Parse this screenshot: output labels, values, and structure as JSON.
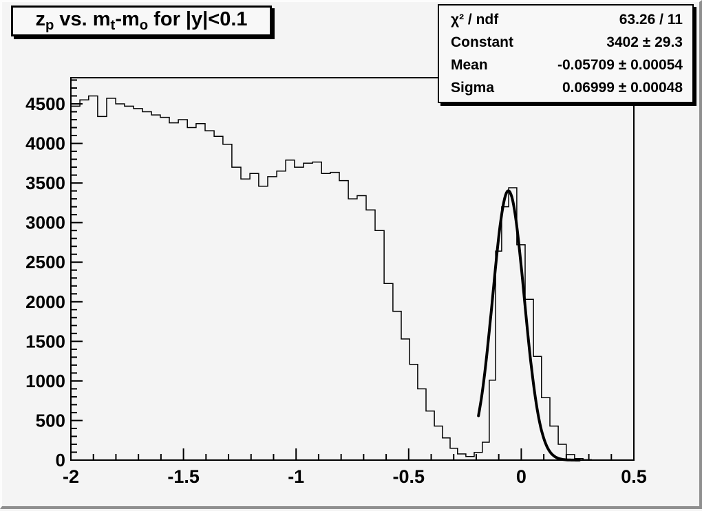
{
  "canvas": {
    "background": "#f4f4f4",
    "pave_background": "#f8f8f8",
    "edge_highlight": "#fcfcfc",
    "edge_shadow": "#8f8f8f",
    "line_color": "#000000"
  },
  "title": {
    "text": "zp vs. mt-mo for |y|<0.1",
    "segments": [
      {
        "t": "z"
      },
      {
        "t": "p",
        "sub": true
      },
      {
        "t": " vs. m"
      },
      {
        "t": "t",
        "sub": true
      },
      {
        "t": "-m"
      },
      {
        "t": "o",
        "sub": true
      },
      {
        "t": " for |y|<0.1"
      }
    ]
  },
  "stats": {
    "rows": [
      {
        "label": "χ² / ndf",
        "value": "63.26 / 11"
      },
      {
        "label": "Constant",
        "value": "3402 ± 29.3"
      },
      {
        "label": "Mean",
        "value": "-0.05709 ± 0.00054"
      },
      {
        "label": "Sigma",
        "value": "0.06999 ± 0.00048"
      }
    ]
  },
  "chart_data": {
    "type": "histogram",
    "title": "zp vs. mt-mo for |y|<0.1",
    "xlabel": "",
    "ylabel": "",
    "xlim": [
      -2,
      0.5
    ],
    "ylim": [
      0,
      4830
    ],
    "grid": false,
    "x_major_ticks": [
      -2,
      -1.5,
      -1,
      -0.5,
      0,
      0.5
    ],
    "x_tick_labels": [
      "-2",
      "-1.5",
      "-1",
      "-0.5",
      "0",
      "0.5"
    ],
    "x_minor_step": 0.1,
    "y_major_ticks": [
      0,
      500,
      1000,
      1500,
      2000,
      2500,
      3000,
      3500,
      4000,
      4500
    ],
    "y_minor_step": 100,
    "bins": {
      "x_left": [
        -2.0,
        -1.96,
        -1.921,
        -1.881,
        -1.841,
        -1.801,
        -1.762,
        -1.722,
        -1.682,
        -1.642,
        -1.603,
        -1.563,
        -1.523,
        -1.483,
        -1.444,
        -1.404,
        -1.364,
        -1.325,
        -1.285,
        -1.245,
        -1.205,
        -1.166,
        -1.126,
        -1.086,
        -1.046,
        -1.007,
        -0.967,
        -0.927,
        -0.887,
        -0.848,
        -0.808,
        -0.768,
        -0.729,
        -0.689,
        -0.649,
        -0.609,
        -0.57,
        -0.533,
        -0.496,
        -0.46,
        -0.423,
        -0.386,
        -0.35,
        -0.316,
        -0.283,
        -0.246,
        -0.209,
        -0.173,
        -0.142,
        -0.114,
        -0.087,
        -0.056,
        -0.02,
        0.017,
        0.054,
        0.09,
        0.127,
        0.164,
        0.2,
        0.237,
        0.274,
        0.311
      ],
      "counts": [
        4470,
        4550,
        4600,
        4340,
        4570,
        4500,
        4470,
        4440,
        4400,
        4360,
        4330,
        4260,
        4300,
        4200,
        4250,
        4160,
        4090,
        3990,
        3700,
        3550,
        3620,
        3460,
        3580,
        3650,
        3790,
        3700,
        3750,
        3765,
        3620,
        3635,
        3530,
        3300,
        3340,
        3160,
        2900,
        2230,
        1880,
        1530,
        1210,
        900,
        620,
        430,
        280,
        150,
        78,
        45,
        96,
        226,
        1010,
        2640,
        3200,
        3440,
        2720,
        2030,
        1310,
        790,
        430,
        200,
        70,
        20,
        5,
        0
      ],
      "x_end": 0.5
    },
    "fit": {
      "type": "gaussian",
      "constant": 3402,
      "mean": -0.05709,
      "sigma": 0.06999,
      "chi2": 63.26,
      "ndf": 11,
      "draw_range": [
        -0.19,
        0.26
      ]
    }
  }
}
